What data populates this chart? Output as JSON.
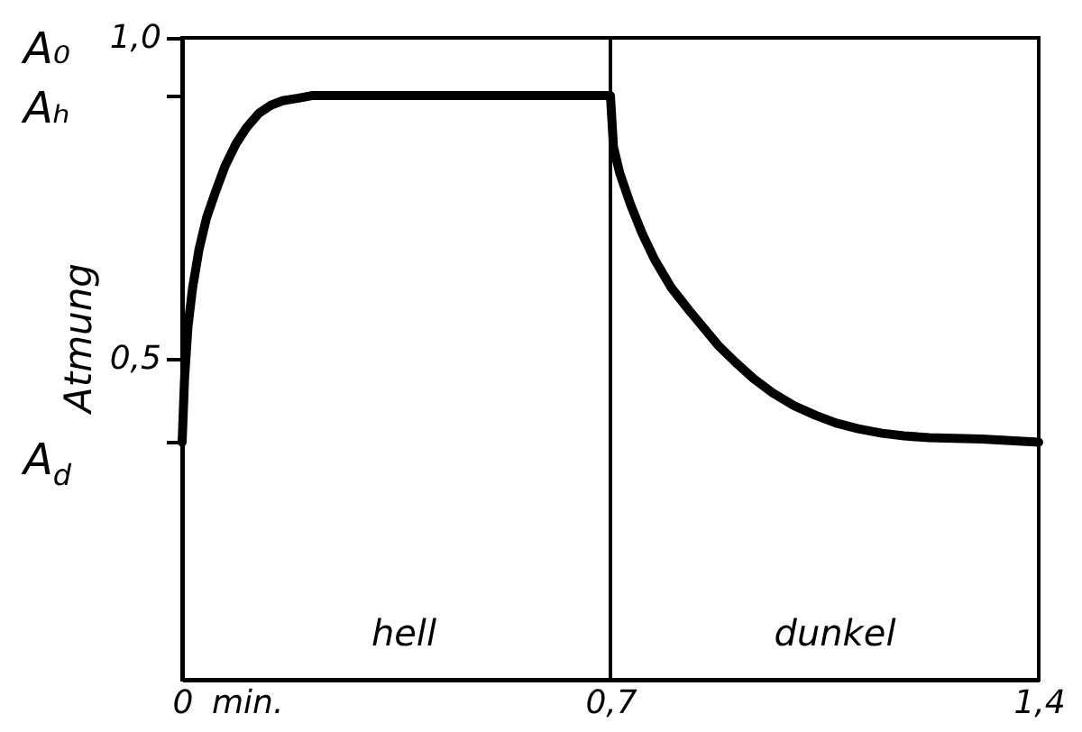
{
  "chart_data": {
    "type": "line",
    "xlabel": "min.",
    "ylabel": "Atmung",
    "xlim": [
      0,
      1.4
    ],
    "xticks": [
      0,
      {
        "value": 0.7,
        "label": "0,7"
      },
      {
        "value": 1.4,
        "label": "1,4"
      }
    ],
    "ylim": [
      0,
      1
    ],
    "yticks": [
      {
        "value": 1,
        "label": "1,0"
      },
      {
        "value": 0.91,
        "label": null
      },
      {
        "value": 0.5,
        "label": "0,5"
      },
      {
        "value": 0.37,
        "label": null
      }
    ],
    "grid": false,
    "series": [
      {
        "color": "#000000",
        "x": [
          0,
          0.004,
          0.0095,
          0.017,
          0.0275,
          0.04,
          0.0545,
          0.07,
          0.088,
          0.105,
          0.126,
          0.145,
          0.164,
          0.19,
          0.212,
          0.7,
          0.705,
          0.715,
          0.733,
          0.752,
          0.772,
          0.8,
          0.829,
          0.877,
          0.905,
          0.934,
          0.965,
          1.0,
          1.035,
          1.068,
          1.105,
          1.144,
          1.18,
          1.221,
          1.307,
          1.4
        ],
        "values": [
          0.37,
          0.47,
          0.55,
          0.61,
          0.67,
          0.72,
          0.76,
          0.8,
          0.835,
          0.86,
          0.883,
          0.895,
          0.902,
          0.906,
          0.91,
          0.91,
          0.83,
          0.79,
          0.74,
          0.695,
          0.655,
          0.61,
          0.575,
          0.52,
          0.494,
          0.469,
          0.447,
          0.427,
          0.412,
          0.4,
          0.391,
          0.384,
          0.38,
          0.377,
          0.375,
          0.37
        ]
      }
    ],
    "ref_lines": [
      {
        "axis": "x",
        "value": 0.7
      }
    ],
    "annotations": [
      "A₀",
      "Aₕ",
      "A$_{d}$",
      "hell",
      "dunkel"
    ]
  }
}
